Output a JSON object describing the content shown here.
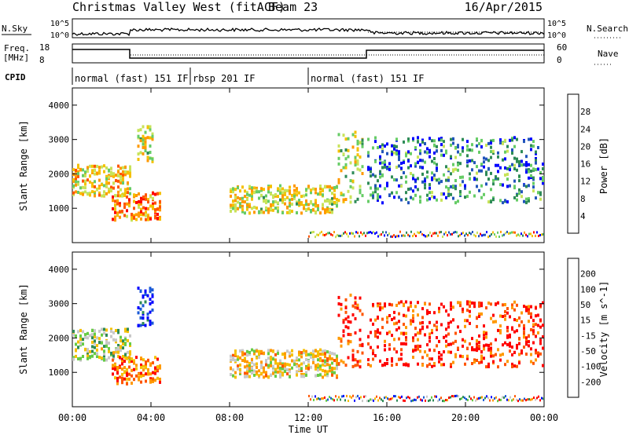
{
  "header": {
    "title": "Christmas Valley West (fitACF)",
    "beam": "Beam 23",
    "date": "16/Apr/2015"
  },
  "time_axis": {
    "label": "Time UT",
    "ticks": [
      "00:00",
      "04:00",
      "08:00",
      "12:00",
      "16:00",
      "20:00",
      "00:00"
    ],
    "range_hours": [
      0,
      24
    ]
  },
  "strips": {
    "nsky": {
      "label": "N.Sky",
      "right_label": "N.Search",
      "left_ticks": [
        "10^5",
        "10^0"
      ],
      "right_ticks": [
        "10^5",
        "10^0"
      ]
    },
    "freq": {
      "label_line1": "Freq.",
      "label_line2": "[MHz]",
      "right_label": "Nave",
      "left_ticks": [
        "18",
        "8"
      ],
      "right_ticks": [
        "60",
        "0"
      ]
    },
    "cpid": {
      "label": "CPID",
      "segments": [
        {
          "label": "normal (fast) 151 IF",
          "start_hour": 0,
          "end_hour": 6
        },
        {
          "label": "rbsp 201 IF",
          "start_hour": 6,
          "end_hour": 12
        },
        {
          "label": "normal (fast) 151 IF",
          "start_hour": 12,
          "end_hour": 24
        }
      ]
    }
  },
  "chart_data": [
    {
      "type": "heatmap",
      "title": "",
      "xlabel": "",
      "ylabel": "Slant Range [km]",
      "xlim": [
        0,
        24
      ],
      "ylim": [
        0,
        4500
      ],
      "yticks": [
        "1000",
        "2000",
        "3000",
        "4000"
      ],
      "colorbar": {
        "label": "Power [dB]",
        "ticks": [
          "4",
          "8",
          "12",
          "16",
          "20",
          "24",
          "28"
        ],
        "colors": [
          "#0000ff",
          "#2255bb",
          "#2e8b57",
          "#66cc66",
          "#c8e35a",
          "#f5c000",
          "#ff9900",
          "#ff5500",
          "#ff0000"
        ]
      },
      "regions": [
        {
          "t0": 0.0,
          "t1": 3.0,
          "r_low": 1400,
          "r_high": 2300,
          "level": 0.6
        },
        {
          "t0": 2.0,
          "t1": 4.5,
          "r_low": 700,
          "r_high": 1500,
          "level": 0.75
        },
        {
          "t0": 3.3,
          "t1": 4.1,
          "r_low": 2400,
          "r_high": 3500,
          "level": 0.55
        },
        {
          "t0": 8.0,
          "t1": 13.5,
          "r_low": 900,
          "r_high": 1700,
          "level": 0.55
        },
        {
          "t0": 13.5,
          "t1": 14.8,
          "r_low": 1200,
          "r_high": 3300,
          "level": 0.5
        },
        {
          "t0": 15.0,
          "t1": 24.0,
          "r_low": 1200,
          "r_high": 3100,
          "level": 0.25
        }
      ]
    },
    {
      "type": "heatmap",
      "title": "",
      "xlabel": "Time UT",
      "ylabel": "Slant Range [km]",
      "xlim": [
        0,
        24
      ],
      "ylim": [
        0,
        4500
      ],
      "yticks": [
        "1000",
        "2000",
        "3000",
        "4000"
      ],
      "colorbar": {
        "label": "Velocity [m s^-1]",
        "ticks": [
          "200",
          "100",
          "50",
          "15",
          "-15",
          "-50",
          "-100",
          "-200"
        ],
        "colors": [
          "#0000ff",
          "#1a5ad6",
          "#2e8b57",
          "#66cc44",
          "#c8c8c8",
          "#f5c000",
          "#ff9900",
          "#ff5500",
          "#ff0000"
        ]
      },
      "regions": [
        {
          "t0": 0.0,
          "t1": 3.0,
          "r_low": 1400,
          "r_high": 2300,
          "level": 0.45
        },
        {
          "t0": 2.0,
          "t1": 4.5,
          "r_low": 700,
          "r_high": 1500,
          "level": 0.8
        },
        {
          "t0": 3.3,
          "t1": 4.1,
          "r_low": 2400,
          "r_high": 3500,
          "level": 0.05
        },
        {
          "t0": 8.0,
          "t1": 13.5,
          "r_low": 900,
          "r_high": 1700,
          "level": 0.6
        },
        {
          "t0": 13.5,
          "t1": 14.8,
          "r_low": 1200,
          "r_high": 3300,
          "level": 0.9
        },
        {
          "t0": 15.0,
          "t1": 24.0,
          "r_low": 1200,
          "r_high": 3100,
          "level": 0.9
        }
      ]
    }
  ]
}
